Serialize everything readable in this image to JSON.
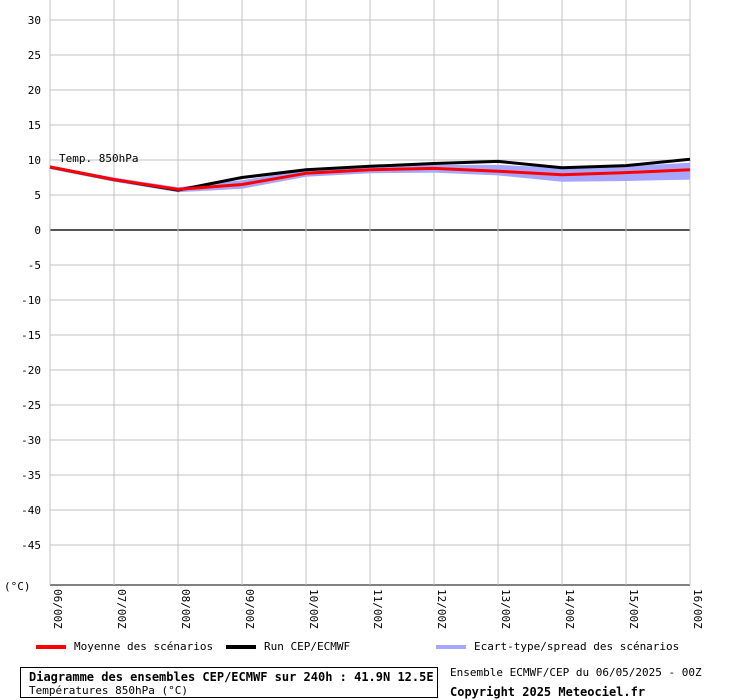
{
  "chart_data": {
    "type": "line",
    "title": "Diagramme des ensembles CEP/ECMWF sur 240h : 41.9N 12.5E",
    "subtitle": "Températures 850hPa (°C)",
    "annotation": "Temp. 850hPa",
    "ylabel": "(°C)",
    "xlabel": "",
    "ylim": [
      -50,
      32
    ],
    "yticks": [
      30,
      25,
      20,
      15,
      10,
      5,
      0,
      -5,
      -10,
      -15,
      -20,
      -25,
      -30,
      -35,
      -40,
      -45
    ],
    "categories": [
      "06/00Z",
      "07/00Z",
      "08/00Z",
      "09/00Z",
      "10/00Z",
      "11/00Z",
      "12/00Z",
      "13/00Z",
      "14/00Z",
      "15/00Z",
      "16/00Z"
    ],
    "grid": true,
    "legend_position": "bottom",
    "series": [
      {
        "name": "Moyenne des scénarios",
        "color": "#ff0000",
        "values": [
          9.0,
          7.2,
          5.8,
          6.5,
          8.1,
          8.6,
          8.8,
          8.4,
          7.9,
          8.2,
          8.6
        ]
      },
      {
        "name": "Run CEP/ECMWF",
        "color": "#000000",
        "values": [
          9.0,
          7.2,
          5.7,
          7.5,
          8.6,
          9.1,
          9.5,
          9.8,
          8.9,
          9.2,
          10.1
        ]
      },
      {
        "name": "Ecart-type/spread des scénarios",
        "color": "#a6a6ff",
        "lower": [
          8.7,
          6.9,
          5.4,
          5.9,
          7.6,
          8.1,
          8.2,
          7.8,
          6.9,
          7.0,
          7.2
        ],
        "upper": [
          9.2,
          7.5,
          6.1,
          7.1,
          8.6,
          9.1,
          9.3,
          9.3,
          8.9,
          9.1,
          9.6
        ]
      }
    ]
  },
  "footer": {
    "run_info": "Ensemble ECMWF/CEP du 06/05/2025 - 00Z",
    "copyright": "Copyright 2025 Meteociel.fr"
  }
}
